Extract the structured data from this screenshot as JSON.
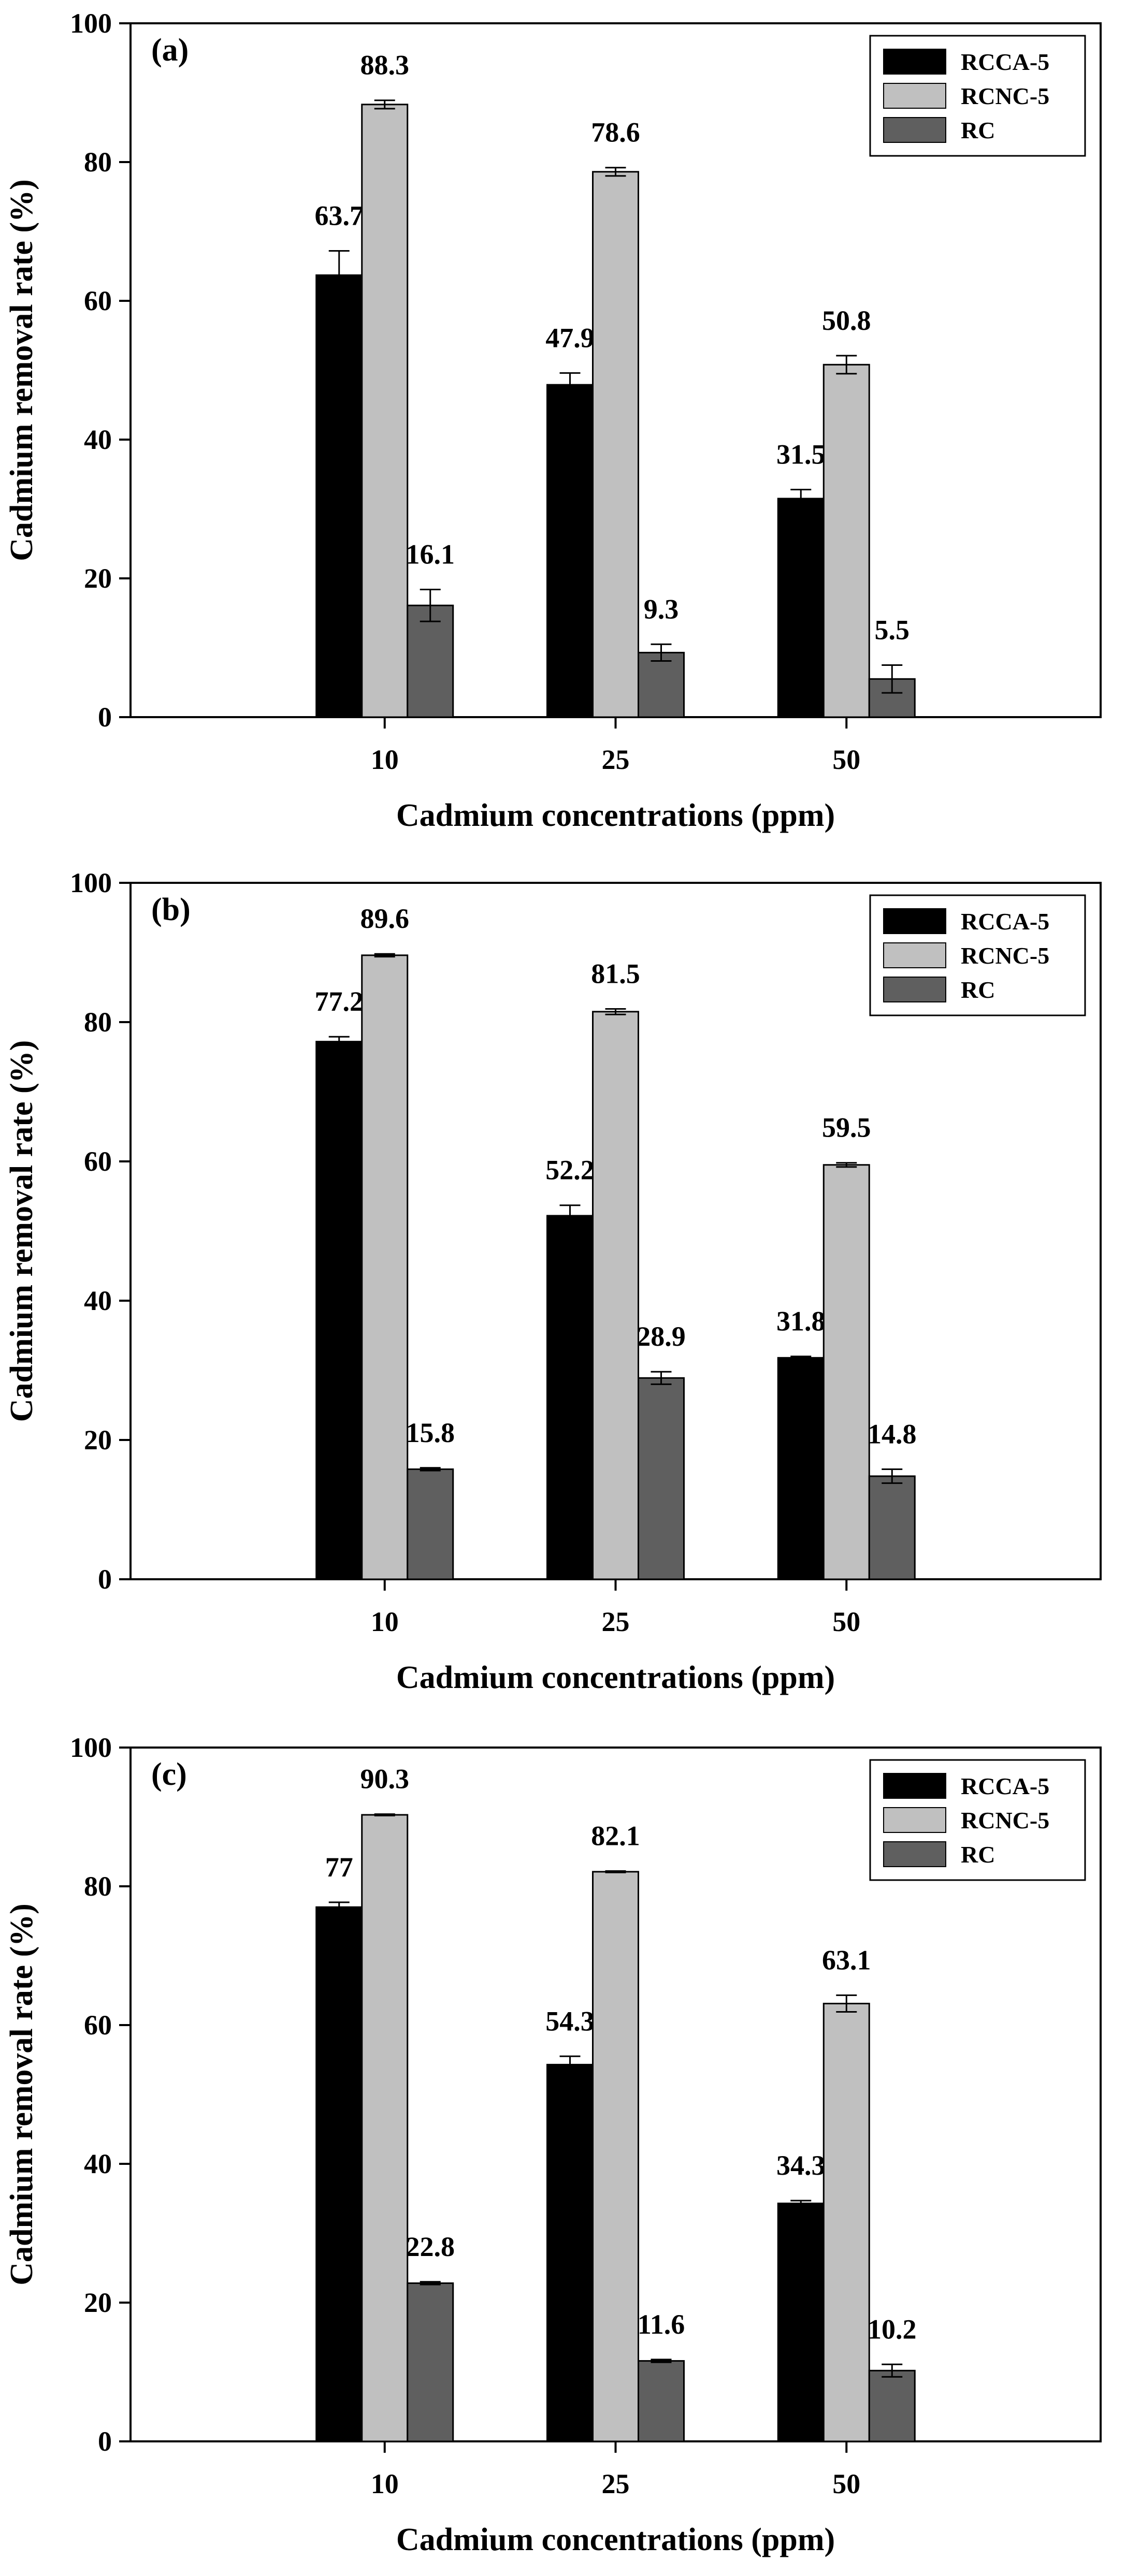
{
  "colors": {
    "RCCA-5": "#000000",
    "RCNC-5": "#c0c0c0",
    "RC": "#5f5f5f",
    "axis": "#000000",
    "background": "#ffffff"
  },
  "chart_data": [
    {
      "type": "bar",
      "panel_label": "(a)",
      "xlabel": "Cadmium concentrations (ppm)",
      "ylabel": "Cadmium  removal rate (%)",
      "categories": [
        "10",
        "25",
        "50"
      ],
      "ylim": [
        0,
        100
      ],
      "yticks": [
        0,
        20,
        40,
        60,
        80,
        100
      ],
      "legend_position": "top-right",
      "grid": false,
      "series": [
        {
          "name": "RCCA-5",
          "values": [
            63.7,
            47.9,
            31.5
          ],
          "labels": [
            "63.7",
            "47.9",
            "31.5"
          ],
          "errors": [
            3.5,
            1.7,
            1.3
          ]
        },
        {
          "name": "RCNC-5",
          "values": [
            88.3,
            78.6,
            50.8
          ],
          "labels": [
            "88.3",
            "78.6",
            "50.8"
          ],
          "errors": [
            0.6,
            0.6,
            1.3
          ]
        },
        {
          "name": "RC",
          "values": [
            16.1,
            9.3,
            5.5
          ],
          "labels": [
            "16.1",
            "9.3",
            "5.5"
          ],
          "errors": [
            2.3,
            1.2,
            2.0
          ]
        }
      ]
    },
    {
      "type": "bar",
      "panel_label": "(b)",
      "xlabel": "Cadmium concentrations (ppm)",
      "ylabel": "Cadmium  removal rate (%)",
      "categories": [
        "10",
        "25",
        "50"
      ],
      "ylim": [
        0,
        100
      ],
      "yticks": [
        0,
        20,
        40,
        60,
        80,
        100
      ],
      "legend_position": "top-right",
      "grid": false,
      "series": [
        {
          "name": "RCCA-5",
          "values": [
            77.2,
            52.2,
            31.8
          ],
          "labels": [
            "77.2",
            "52.2",
            "31.8"
          ],
          "errors": [
            0.7,
            1.5,
            0.2
          ]
        },
        {
          "name": "RCNC-5",
          "values": [
            89.6,
            81.5,
            59.5
          ],
          "labels": [
            "89.6",
            "81.5",
            "59.5"
          ],
          "errors": [
            0.2,
            0.4,
            0.3
          ]
        },
        {
          "name": "RC",
          "values": [
            15.8,
            28.9,
            14.8
          ],
          "labels": [
            "15.8",
            "28.9",
            "14.8"
          ],
          "errors": [
            0.2,
            0.9,
            1.0
          ]
        }
      ]
    },
    {
      "type": "bar",
      "panel_label": "(c)",
      "xlabel": "Cadmium concentrations (ppm)",
      "ylabel": "Cadmium  removal rate (%)",
      "categories": [
        "10",
        "25",
        "50"
      ],
      "ylim": [
        0,
        100
      ],
      "yticks": [
        0,
        20,
        40,
        60,
        80,
        100
      ],
      "legend_position": "top-right",
      "grid": false,
      "series": [
        {
          "name": "RCCA-5",
          "values": [
            77,
            54.3,
            34.3
          ],
          "labels": [
            "77",
            "54.3",
            "34.3"
          ],
          "errors": [
            0.7,
            1.2,
            0.4
          ]
        },
        {
          "name": "RCNC-5",
          "values": [
            90.3,
            82.1,
            63.1
          ],
          "labels": [
            "90.3",
            "82.1",
            "63.1"
          ],
          "errors": [
            0.1,
            0.1,
            1.2
          ]
        },
        {
          "name": "RC",
          "values": [
            22.8,
            11.6,
            10.2
          ],
          "labels": [
            "22.8",
            "11.6",
            "10.2"
          ],
          "errors": [
            0.2,
            0.2,
            0.9
          ]
        }
      ]
    }
  ]
}
